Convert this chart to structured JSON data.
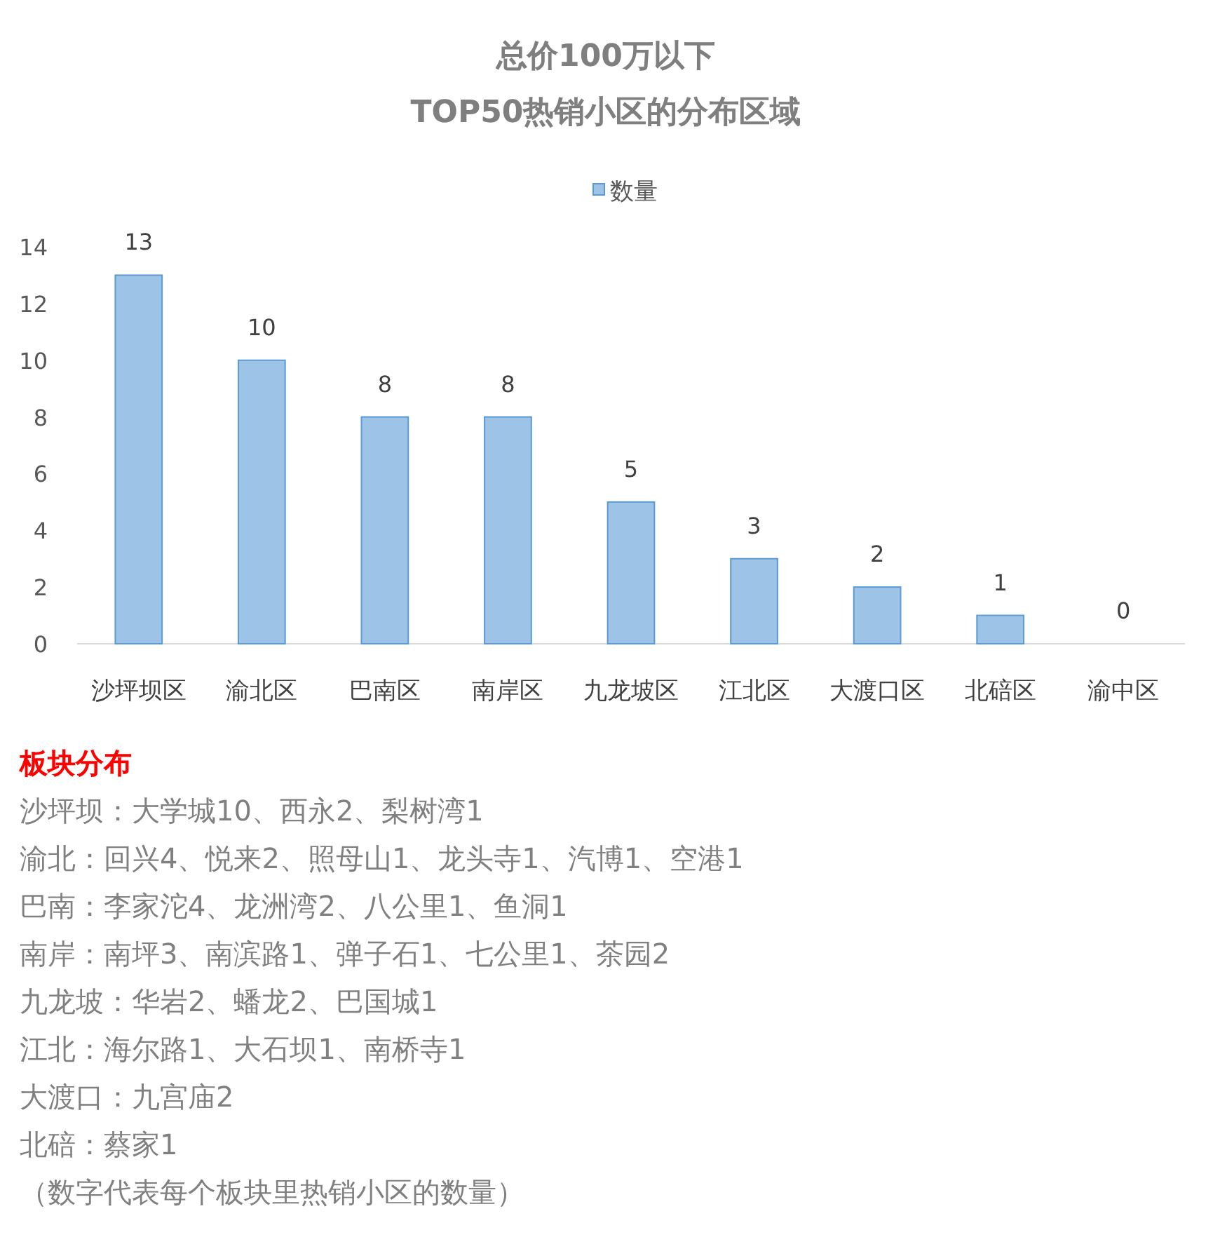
{
  "chart_data": {
    "type": "bar",
    "title": "总价100万以下",
    "subtitle": "TOP50热销小区的分布区域",
    "categories": [
      "沙坪坝区",
      "渝北区",
      "巴南区",
      "南岸区",
      "九龙坡区",
      "江北区",
      "大渡口区",
      "北碚区",
      "渝中区"
    ],
    "series": [
      {
        "name": "数量",
        "color": "#9dc3e6",
        "values": [
          13,
          10,
          8,
          8,
          5,
          3,
          2,
          1,
          0
        ]
      }
    ],
    "ylim": [
      0,
      14
    ],
    "yticks": [
      0,
      2,
      4,
      6,
      8,
      10,
      12,
      14
    ],
    "grid": false,
    "legend": "top",
    "data_labels": true,
    "annotations": [
      "板块分布",
      "沙坪坝：大学城10、西永2、梨树湾1",
      "渝北：回兴4、悦来2、照母山1、龙头寺1、汽博1、空港1",
      "巴南：李家沱4、龙洲湾2、八公里1、鱼洞1",
      "南岸：南坪3、南滨路1、弹子石1、七公里1、茶园2",
      "九龙坡：华岩2、蟠龙2、巴国城1",
      "江北：海尔路1、大石坝1、南桥寺1",
      "大渡口：九宫庙2",
      "北碚：蔡家1",
      "（数字代表每个板块里热销小区的数量）"
    ]
  }
}
